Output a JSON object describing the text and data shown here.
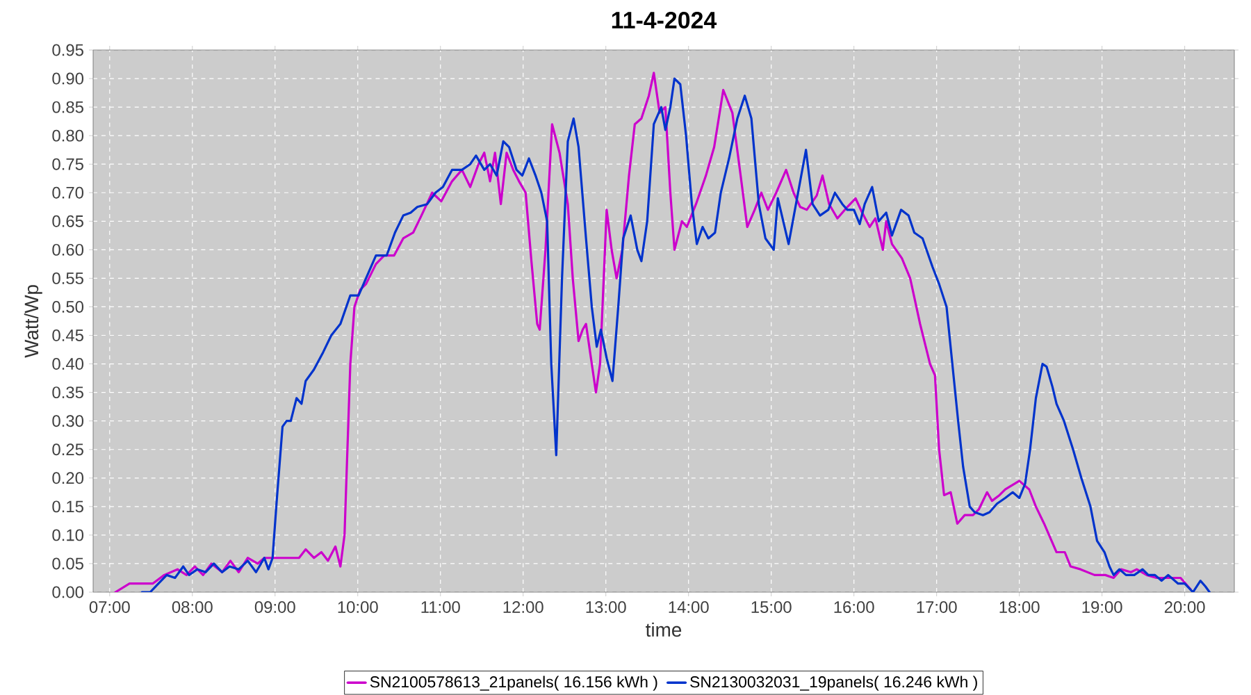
{
  "chart_data": {
    "type": "line",
    "title": "11-4-2024",
    "xlabel": "time",
    "ylabel": "Watt/Wp",
    "xlim": [
      6.8,
      20.6
    ],
    "ylim": [
      0,
      0.95
    ],
    "xticks": [
      {
        "value": 7,
        "label": "07:00"
      },
      {
        "value": 8,
        "label": "08:00"
      },
      {
        "value": 9,
        "label": "09:00"
      },
      {
        "value": 10,
        "label": "10:00"
      },
      {
        "value": 11,
        "label": "11:00"
      },
      {
        "value": 12,
        "label": "12:00"
      },
      {
        "value": 13,
        "label": "13:00"
      },
      {
        "value": 14,
        "label": "14:00"
      },
      {
        "value": 15,
        "label": "15:00"
      },
      {
        "value": 16,
        "label": "16:00"
      },
      {
        "value": 17,
        "label": "17:00"
      },
      {
        "value": 18,
        "label": "18:00"
      },
      {
        "value": 19,
        "label": "19:00"
      },
      {
        "value": 20,
        "label": "20:00"
      }
    ],
    "yticks": [
      {
        "value": 0,
        "label": "0.00"
      },
      {
        "value": 0.05,
        "label": "0.05"
      },
      {
        "value": 0.1,
        "label": "0.10"
      },
      {
        "value": 0.15,
        "label": "0.15"
      },
      {
        "value": 0.2,
        "label": "0.20"
      },
      {
        "value": 0.25,
        "label": "0.25"
      },
      {
        "value": 0.3,
        "label": "0.30"
      },
      {
        "value": 0.35,
        "label": "0.35"
      },
      {
        "value": 0.4,
        "label": "0.40"
      },
      {
        "value": 0.45,
        "label": "0.45"
      },
      {
        "value": 0.5,
        "label": "0.50"
      },
      {
        "value": 0.55,
        "label": "0.55"
      },
      {
        "value": 0.6,
        "label": "0.60"
      },
      {
        "value": 0.65,
        "label": "0.65"
      },
      {
        "value": 0.7,
        "label": "0.70"
      },
      {
        "value": 0.75,
        "label": "0.75"
      },
      {
        "value": 0.8,
        "label": "0.80"
      },
      {
        "value": 0.85,
        "label": "0.85"
      },
      {
        "value": 0.9,
        "label": "0.90"
      },
      {
        "value": 0.95,
        "label": "0.95"
      }
    ],
    "grid": true,
    "legend": "bottom",
    "marker": "none",
    "line_style": "solid",
    "series": [
      {
        "name": "SN2100578613_21panels( 16.156 kWh )",
        "color": "#cc00cc",
        "x": [
          7.07,
          7.24,
          7.52,
          7.66,
          7.82,
          7.93,
          8.03,
          8.13,
          8.23,
          8.36,
          8.46,
          8.56,
          8.67,
          8.79,
          8.87,
          9.29,
          9.37,
          9.47,
          9.56,
          9.64,
          9.73,
          9.79,
          9.84,
          9.91,
          9.96,
          10.03,
          10.1,
          10.22,
          10.32,
          10.44,
          10.55,
          10.67,
          10.77,
          10.9,
          11.01,
          11.14,
          11.26,
          11.36,
          11.46,
          11.53,
          11.6,
          11.66,
          11.73,
          11.8,
          11.88,
          11.95,
          12.03,
          12.1,
          12.17,
          12.2,
          12.27,
          12.35,
          12.44,
          12.54,
          12.6,
          12.67,
          12.72,
          12.76,
          12.81,
          12.88,
          12.93,
          13.01,
          13.07,
          13.13,
          13.2,
          13.28,
          13.35,
          13.43,
          13.52,
          13.58,
          13.65,
          13.72,
          13.78,
          13.83,
          13.92,
          13.98,
          14.09,
          14.21,
          14.31,
          14.42,
          14.53,
          14.63,
          14.71,
          14.8,
          14.88,
          14.96,
          15.06,
          15.18,
          15.27,
          15.35,
          15.43,
          15.55,
          15.62,
          15.7,
          15.8,
          15.92,
          16.02,
          16.1,
          16.19,
          16.26,
          16.35,
          16.39,
          16.46,
          16.58,
          16.68,
          16.8,
          16.92,
          16.98,
          17.03,
          17.09,
          17.17,
          17.25,
          17.34,
          17.44,
          17.51,
          17.61,
          17.67,
          17.76,
          17.83,
          18.0,
          18.12,
          18.2,
          18.3,
          18.45,
          18.55,
          18.62,
          18.74,
          18.91,
          19.04,
          19.14,
          19.23,
          19.35,
          19.42,
          19.54,
          19.66,
          19.95,
          20.07
        ],
        "values": [
          0,
          0.015,
          0.015,
          0.03,
          0.04,
          0.03,
          0.045,
          0.03,
          0.05,
          0.035,
          0.055,
          0.035,
          0.06,
          0.05,
          0.06,
          0.06,
          0.075,
          0.06,
          0.07,
          0.055,
          0.08,
          0.045,
          0.1,
          0.4,
          0.5,
          0.53,
          0.54,
          0.575,
          0.59,
          0.59,
          0.62,
          0.63,
          0.66,
          0.7,
          0.685,
          0.72,
          0.74,
          0.71,
          0.75,
          0.77,
          0.72,
          0.77,
          0.68,
          0.77,
          0.74,
          0.72,
          0.7,
          0.58,
          0.47,
          0.46,
          0.6,
          0.82,
          0.77,
          0.68,
          0.55,
          0.44,
          0.46,
          0.47,
          0.42,
          0.35,
          0.4,
          0.67,
          0.6,
          0.55,
          0.6,
          0.73,
          0.82,
          0.83,
          0.87,
          0.91,
          0.84,
          0.85,
          0.7,
          0.6,
          0.65,
          0.64,
          0.68,
          0.73,
          0.78,
          0.88,
          0.84,
          0.73,
          0.64,
          0.67,
          0.7,
          0.67,
          0.7,
          0.74,
          0.7,
          0.675,
          0.67,
          0.695,
          0.73,
          0.68,
          0.655,
          0.675,
          0.69,
          0.665,
          0.64,
          0.655,
          0.6,
          0.65,
          0.61,
          0.585,
          0.55,
          0.47,
          0.4,
          0.38,
          0.25,
          0.17,
          0.175,
          0.12,
          0.135,
          0.135,
          0.145,
          0.175,
          0.16,
          0.17,
          0.18,
          0.195,
          0.18,
          0.15,
          0.12,
          0.07,
          0.07,
          0.045,
          0.04,
          0.03,
          0.03,
          0.025,
          0.04,
          0.035,
          0.04,
          0.03,
          0.025,
          0.025,
          0.005
        ]
      },
      {
        "name": "SN2130032031_19panels( 16.246 kWh )",
        "color": "#0033cc",
        "x": [
          7.39,
          7.49,
          7.59,
          7.69,
          7.79,
          7.89,
          7.96,
          8.06,
          8.16,
          8.26,
          8.36,
          8.45,
          8.56,
          8.67,
          8.77,
          8.87,
          8.92,
          8.97,
          9.02,
          9.09,
          9.14,
          9.19,
          9.26,
          9.32,
          9.37,
          9.47,
          9.58,
          9.68,
          9.79,
          9.91,
          10.01,
          10.1,
          10.22,
          10.35,
          10.45,
          10.55,
          10.64,
          10.72,
          10.84,
          10.94,
          11.03,
          11.14,
          11.26,
          11.36,
          11.43,
          11.53,
          11.6,
          11.68,
          11.76,
          11.83,
          11.92,
          11.99,
          12.07,
          12.15,
          12.22,
          12.29,
          12.34,
          12.4,
          12.47,
          12.54,
          12.61,
          12.67,
          12.76,
          12.83,
          12.89,
          12.94,
          13.01,
          13.08,
          13.15,
          13.21,
          13.3,
          13.38,
          13.43,
          13.5,
          13.58,
          13.67,
          13.72,
          13.78,
          13.83,
          13.9,
          13.97,
          14.04,
          14.1,
          14.17,
          14.24,
          14.32,
          14.39,
          14.49,
          14.59,
          14.68,
          14.76,
          14.85,
          14.93,
          15.03,
          15.08,
          15.21,
          15.42,
          15.5,
          15.59,
          15.69,
          15.77,
          15.86,
          15.92,
          16.0,
          16.07,
          16.13,
          16.22,
          16.3,
          16.39,
          16.46,
          16.57,
          16.66,
          16.73,
          16.83,
          16.95,
          17.03,
          17.12,
          17.19,
          17.26,
          17.32,
          17.4,
          17.46,
          17.56,
          17.64,
          17.73,
          17.83,
          17.92,
          18.0,
          18.07,
          18.13,
          18.2,
          18.28,
          18.33,
          18.4,
          18.45,
          18.54,
          18.65,
          18.75,
          18.86,
          18.94,
          19.03,
          19.09,
          19.14,
          19.21,
          19.29,
          19.39,
          19.49,
          19.56,
          19.64,
          19.72,
          19.8,
          19.92,
          20.0,
          20.1,
          20.19,
          20.25,
          20.3
        ],
        "values": [
          0,
          0,
          0.015,
          0.03,
          0.025,
          0.045,
          0.03,
          0.04,
          0.035,
          0.05,
          0.035,
          0.045,
          0.04,
          0.055,
          0.035,
          0.06,
          0.04,
          0.06,
          0.16,
          0.29,
          0.3,
          0.3,
          0.34,
          0.33,
          0.37,
          0.39,
          0.42,
          0.45,
          0.47,
          0.52,
          0.52,
          0.55,
          0.59,
          0.59,
          0.63,
          0.66,
          0.665,
          0.675,
          0.68,
          0.7,
          0.71,
          0.74,
          0.74,
          0.75,
          0.765,
          0.74,
          0.75,
          0.73,
          0.79,
          0.78,
          0.74,
          0.73,
          0.76,
          0.73,
          0.7,
          0.65,
          0.4,
          0.24,
          0.55,
          0.79,
          0.83,
          0.78,
          0.62,
          0.5,
          0.43,
          0.46,
          0.41,
          0.37,
          0.5,
          0.62,
          0.66,
          0.6,
          0.58,
          0.65,
          0.82,
          0.85,
          0.81,
          0.85,
          0.9,
          0.89,
          0.8,
          0.68,
          0.61,
          0.64,
          0.62,
          0.63,
          0.7,
          0.76,
          0.83,
          0.87,
          0.83,
          0.68,
          0.62,
          0.6,
          0.69,
          0.61,
          0.775,
          0.68,
          0.66,
          0.67,
          0.7,
          0.68,
          0.67,
          0.67,
          0.645,
          0.68,
          0.71,
          0.65,
          0.665,
          0.625,
          0.67,
          0.66,
          0.63,
          0.62,
          0.57,
          0.54,
          0.5,
          0.4,
          0.3,
          0.22,
          0.15,
          0.14,
          0.135,
          0.14,
          0.155,
          0.165,
          0.175,
          0.165,
          0.19,
          0.25,
          0.34,
          0.4,
          0.395,
          0.36,
          0.33,
          0.3,
          0.25,
          0.2,
          0.15,
          0.09,
          0.07,
          0.045,
          0.03,
          0.04,
          0.03,
          0.03,
          0.04,
          0.03,
          0.03,
          0.02,
          0.03,
          0.015,
          0.015,
          0,
          0.02,
          0.01,
          0
        ]
      }
    ]
  }
}
